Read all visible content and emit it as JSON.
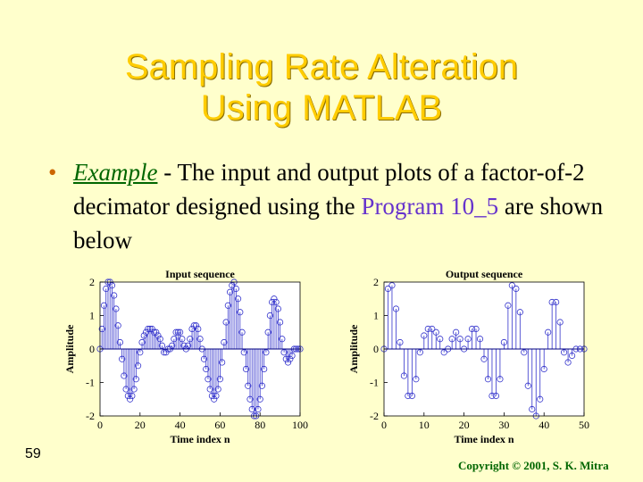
{
  "title_line1": "Sampling Rate Alteration",
  "title_line2": "Using MATLAB",
  "bullet": {
    "lead": "Example",
    "sep": " - ",
    "text1": "The input and output plots of a factor-of-2 decimator designed using the ",
    "program": "Program 10_5",
    "text2": " are shown below"
  },
  "slide_number": "59",
  "copyright": "Copyright © 2001, S. K. Mitra",
  "colors": {
    "background": "#ffffcc",
    "title": "#ffcc00",
    "stem": "#3333cc",
    "example": "#006600",
    "program": "#6633cc"
  },
  "chart_data": [
    {
      "type": "stem",
      "title": "Input sequence",
      "xlabel": "Time index n",
      "ylabel": "Amplitude",
      "xlim": [
        0,
        100
      ],
      "ylim": [
        -2,
        2
      ],
      "xticks": [
        0,
        20,
        40,
        60,
        80,
        100
      ],
      "yticks": [
        -2,
        -1,
        0,
        1,
        2
      ],
      "x": [
        0,
        1,
        2,
        3,
        4,
        5,
        6,
        7,
        8,
        9,
        10,
        11,
        12,
        13,
        14,
        15,
        16,
        17,
        18,
        19,
        20,
        21,
        22,
        23,
        24,
        25,
        26,
        27,
        28,
        29,
        30,
        31,
        32,
        33,
        34,
        35,
        36,
        37,
        38,
        39,
        40,
        41,
        42,
        43,
        44,
        45,
        46,
        47,
        48,
        49,
        50,
        51,
        52,
        53,
        54,
        55,
        56,
        57,
        58,
        59,
        60,
        61,
        62,
        63,
        64,
        65,
        66,
        67,
        68,
        69,
        70,
        71,
        72,
        73,
        74,
        75,
        76,
        77,
        78,
        79,
        80,
        81,
        82,
        83,
        84,
        85,
        86,
        87,
        88,
        89,
        90,
        91,
        92,
        93,
        94,
        95,
        96,
        97,
        98,
        99,
        100
      ],
      "values": [
        0,
        0.6,
        1.3,
        1.8,
        2.0,
        2.0,
        1.9,
        1.6,
        1.2,
        0.7,
        0.2,
        -0.3,
        -0.8,
        -1.2,
        -1.4,
        -1.5,
        -1.4,
        -1.2,
        -0.9,
        -0.5,
        -0.1,
        0.2,
        0.4,
        0.5,
        0.6,
        0.6,
        0.6,
        0.5,
        0.5,
        0.4,
        0.3,
        0.1,
        -0.1,
        -0.1,
        0.0,
        0.0,
        0.1,
        0.3,
        0.5,
        0.5,
        0.5,
        0.3,
        0.1,
        0.0,
        0.1,
        0.3,
        0.6,
        0.7,
        0.7,
        0.6,
        0.3,
        0.0,
        -0.3,
        -0.6,
        -0.9,
        -1.2,
        -1.4,
        -1.5,
        -1.4,
        -1.2,
        -0.9,
        -0.4,
        0.2,
        0.8,
        1.3,
        1.7,
        1.9,
        2.0,
        1.8,
        1.5,
        1.1,
        0.5,
        -0.1,
        -0.6,
        -1.1,
        -1.5,
        -1.8,
        -2.0,
        -2.0,
        -1.8,
        -1.5,
        -1.1,
        -0.6,
        -0.1,
        0.5,
        1.0,
        1.4,
        1.5,
        1.4,
        1.2,
        0.8,
        0.3,
        -0.1,
        -0.3,
        -0.4,
        -0.3,
        -0.2,
        0.0,
        0.0,
        0.0,
        0.0
      ]
    },
    {
      "type": "stem",
      "title": "Output sequence",
      "xlabel": "Time index n",
      "ylabel": "Amplitude",
      "xlim": [
        0,
        50
      ],
      "ylim": [
        -2,
        2
      ],
      "xticks": [
        0,
        10,
        20,
        30,
        40,
        50
      ],
      "yticks": [
        -2,
        -1,
        0,
        1,
        2
      ],
      "x": [
        0,
        1,
        2,
        3,
        4,
        5,
        6,
        7,
        8,
        9,
        10,
        11,
        12,
        13,
        14,
        15,
        16,
        17,
        18,
        19,
        20,
        21,
        22,
        23,
        24,
        25,
        26,
        27,
        28,
        29,
        30,
        31,
        32,
        33,
        34,
        35,
        36,
        37,
        38,
        39,
        40,
        41,
        42,
        43,
        44,
        45,
        46,
        47,
        48,
        49,
        50
      ],
      "values": [
        0,
        1.8,
        1.9,
        1.2,
        0.2,
        -0.8,
        -1.4,
        -1.4,
        -0.9,
        -0.1,
        0.4,
        0.6,
        0.6,
        0.5,
        0.3,
        -0.1,
        0.0,
        0.3,
        0.5,
        0.3,
        0.0,
        0.3,
        0.6,
        0.6,
        0.3,
        -0.3,
        -0.9,
        -1.4,
        -1.4,
        -0.9,
        0.2,
        1.3,
        1.9,
        1.8,
        1.1,
        -0.1,
        -1.1,
        -1.8,
        -2.0,
        -1.5,
        -0.6,
        0.5,
        1.4,
        1.4,
        0.8,
        -0.1,
        -0.4,
        -0.2,
        0.0,
        0.0,
        0.0
      ]
    }
  ]
}
